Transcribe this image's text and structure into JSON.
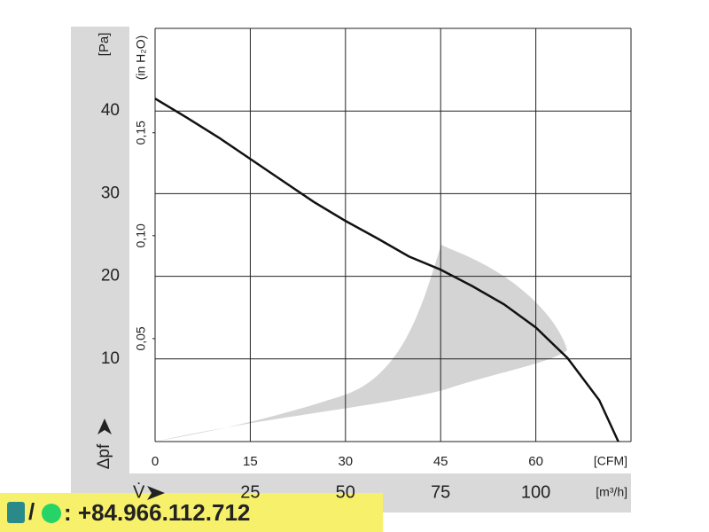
{
  "chart_data": {
    "type": "line",
    "x": [
      0,
      5,
      10,
      15,
      20,
      25,
      30,
      35,
      40,
      45,
      50,
      55,
      60,
      65,
      70,
      73
    ],
    "values": [
      41.5,
      39.2,
      36.8,
      34.2,
      31.6,
      29.0,
      26.7,
      24.6,
      22.4,
      20.8,
      18.8,
      16.6,
      13.8,
      10.1,
      5.0,
      0
    ],
    "color": "#111111",
    "xlim": [
      0,
      75
    ],
    "ylim": [
      0,
      50
    ],
    "xticks": [
      0,
      15,
      30,
      45,
      60
    ],
    "yticks": [
      10,
      20,
      30,
      40
    ],
    "x2lim": [
      0,
      125
    ],
    "x2ticks": [
      25,
      50,
      75,
      100
    ],
    "y2lim": [
      0,
      0.2007
    ],
    "y2ticks": [
      {
        "value": 0.05,
        "label": "0,05"
      },
      {
        "value": 0.1,
        "label": "0,10"
      },
      {
        "value": 0.15,
        "label": "0,15"
      }
    ],
    "xlabel": "[CFM]",
    "x2label": "[m³/h]",
    "ylabel": "[Pa]",
    "y2label": "(in H₂O)",
    "ysymbol": "Δpf",
    "xsymbol": "V̇",
    "grid": true,
    "contact": ": +84.966.112.712"
  }
}
